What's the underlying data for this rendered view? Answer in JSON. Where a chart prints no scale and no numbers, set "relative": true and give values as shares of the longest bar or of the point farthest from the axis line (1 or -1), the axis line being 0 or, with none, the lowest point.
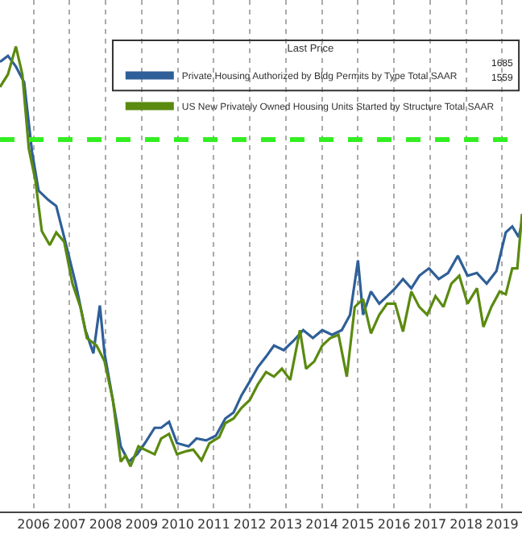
{
  "chart_data": {
    "type": "line",
    "relative": true,
    "legend_title": "Last Price",
    "legend": "top right",
    "grid": "x",
    "marker": "none",
    "line_style": "solid",
    "xlim": [
      2005.57,
      2020.05
    ],
    "xticks": [
      {
        "value": 2006.5,
        "label": "2006"
      },
      {
        "value": 2007.5,
        "label": "2007"
      },
      {
        "value": 2008.5,
        "label": "2008"
      },
      {
        "value": 2009.5,
        "label": "2009"
      },
      {
        "value": 2010.5,
        "label": "2010"
      },
      {
        "value": 2011.5,
        "label": "2011"
      },
      {
        "value": 2012.5,
        "label": "2012"
      },
      {
        "value": 2013.5,
        "label": "2013"
      },
      {
        "value": 2014.5,
        "label": "2014"
      },
      {
        "value": 2015.5,
        "label": "2015"
      },
      {
        "value": 2016.5,
        "label": "2016"
      },
      {
        "value": 2017.5,
        "label": "2017"
      },
      {
        "value": 2018.5,
        "label": "2018"
      },
      {
        "value": 2019.5,
        "label": "2019"
      }
    ],
    "annotations": [
      {
        "text": "1685"
      },
      {
        "text": "1559"
      }
    ],
    "ref_lines": [
      {
        "axis": "y",
        "value": 0.8,
        "color": "#33ee22",
        "line_style": "dashed"
      }
    ],
    "series": [
      {
        "name": "Private Housing Authorized by Bldg Permits by Type Total SAAR",
        "color": "#2f5f98",
        "x": [
          2005.57,
          2005.79,
          2006.01,
          2006.24,
          2006.46,
          2006.64,
          2006.91,
          2007.13,
          2007.35,
          2007.67,
          2007.94,
          2008.16,
          2008.34,
          2008.47,
          2008.7,
          2008.92,
          2009.14,
          2009.37,
          2009.59,
          2009.86,
          2010.04,
          2010.26,
          2010.48,
          2010.8,
          2011.02,
          2011.29,
          2011.56,
          2011.82,
          2012.05,
          2012.27,
          2012.5,
          2012.72,
          2012.95,
          2013.17,
          2013.44,
          2013.71,
          2013.98,
          2014.25,
          2014.51,
          2014.78,
          2015.05,
          2015.28,
          2015.5,
          2015.64,
          2015.86,
          2016.09,
          2016.31,
          2016.53,
          2016.75,
          2016.98,
          2017.2,
          2017.47,
          2017.74,
          2018.0,
          2018.27,
          2018.54,
          2018.8,
          2019.07,
          2019.34,
          2019.6,
          2019.78,
          2019.96,
          2020.05
        ],
        "values": [
          0.967,
          0.98,
          0.957,
          0.923,
          0.773,
          0.69,
          0.67,
          0.657,
          0.59,
          0.49,
          0.39,
          0.34,
          0.443,
          0.34,
          0.24,
          0.14,
          0.107,
          0.123,
          0.147,
          0.18,
          0.18,
          0.193,
          0.147,
          0.14,
          0.157,
          0.153,
          0.163,
          0.2,
          0.213,
          0.25,
          0.28,
          0.31,
          0.333,
          0.357,
          0.347,
          0.367,
          0.39,
          0.373,
          0.39,
          0.38,
          0.39,
          0.423,
          0.54,
          0.423,
          0.473,
          0.447,
          0.463,
          0.48,
          0.5,
          0.48,
          0.507,
          0.523,
          0.5,
          0.513,
          0.55,
          0.507,
          0.513,
          0.49,
          0.517,
          0.6,
          0.613,
          0.59,
          0.623
        ]
      },
      {
        "name": "US New Privately Owned Housing Units Started by Structure Total SAAR",
        "color": "#5a8a0f",
        "x": [
          2005.57,
          2005.79,
          2006.01,
          2006.19,
          2006.37,
          2006.55,
          2006.73,
          2006.95,
          2007.13,
          2007.35,
          2007.58,
          2007.8,
          2007.98,
          2008.25,
          2008.47,
          2008.7,
          2008.92,
          2009.05,
          2009.19,
          2009.41,
          2009.59,
          2009.86,
          2010.04,
          2010.26,
          2010.48,
          2010.75,
          2010.93,
          2011.16,
          2011.38,
          2011.65,
          2011.82,
          2012.05,
          2012.27,
          2012.5,
          2012.72,
          2012.95,
          2013.17,
          2013.39,
          2013.62,
          2013.89,
          2014.06,
          2014.29,
          2014.51,
          2014.73,
          2014.96,
          2015.19,
          2015.41,
          2015.64,
          2015.86,
          2016.09,
          2016.31,
          2016.53,
          2016.75,
          2016.98,
          2017.2,
          2017.42,
          2017.65,
          2017.87,
          2018.09,
          2018.31,
          2018.54,
          2018.8,
          2018.98,
          2019.2,
          2019.43,
          2019.6,
          2019.78,
          2019.92,
          2020.05
        ],
        "values": [
          0.913,
          0.94,
          1,
          0.94,
          0.78,
          0.713,
          0.603,
          0.573,
          0.6,
          0.58,
          0.49,
          0.44,
          0.373,
          0.357,
          0.323,
          0.24,
          0.107,
          0.12,
          0.097,
          0.14,
          0.133,
          0.123,
          0.157,
          0.167,
          0.123,
          0.13,
          0.133,
          0.11,
          0.147,
          0.16,
          0.19,
          0.2,
          0.223,
          0.24,
          0.273,
          0.3,
          0.29,
          0.307,
          0.283,
          0.39,
          0.307,
          0.323,
          0.357,
          0.373,
          0.38,
          0.29,
          0.44,
          0.457,
          0.383,
          0.423,
          0.447,
          0.447,
          0.387,
          0.473,
          0.44,
          0.423,
          0.463,
          0.44,
          0.49,
          0.507,
          0.447,
          0.48,
          0.397,
          0.44,
          0.473,
          0.467,
          0.523,
          0.523,
          0.64
        ]
      }
    ]
  }
}
